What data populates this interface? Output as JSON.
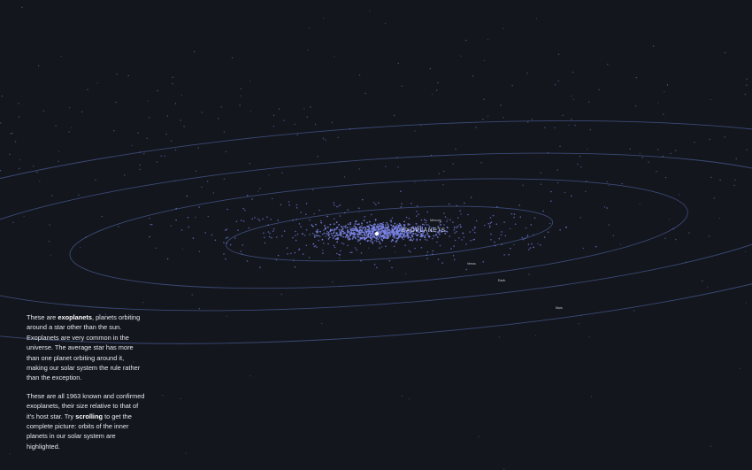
{
  "label": "EXOPLANETS",
  "planets": [
    "Mercury",
    "Venus",
    "Earth",
    "Mars"
  ],
  "paragraphs": [
    [
      {
        "text": "These are "
      },
      {
        "text": "exoplanets",
        "bold": true
      },
      {
        "text": ", planets orbiting around a star other than the sun. Exoplanets are very common in the universe. The average star has more than one planet orbiting around it, making our solar system the rule rather than the exception."
      }
    ],
    [
      {
        "text": "These are all 1963 known and confirmed exoplanets, their size relative to that of it's host star. Try "
      },
      {
        "text": "scrolling",
        "bold": true
      },
      {
        "text": " to get the complete picture: orbits of the inner planets in our solar system are highlighted."
      }
    ]
  ]
}
